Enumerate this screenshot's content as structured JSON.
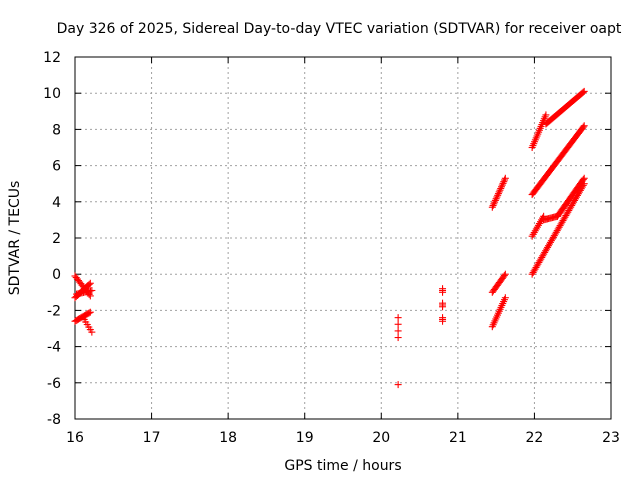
{
  "chart_data": {
    "type": "scatter",
    "title": "Day 326 of 2025, Sidereal Day-to-day VTEC variation (SDTVAR) for receiver oapt",
    "xlabel": "GPS time / hours",
    "ylabel": "SDTVAR / TECUs",
    "xlim": [
      16,
      23
    ],
    "ylim": [
      -8,
      12
    ],
    "xticks": [
      "16",
      "17",
      "18",
      "19",
      "20",
      "21",
      "22",
      "23"
    ],
    "yticks": [
      "-8",
      "-6",
      "-4",
      "-2",
      "0",
      "2",
      "4",
      "6",
      "8",
      "10",
      "12"
    ],
    "grid": true,
    "marker": "plus",
    "color": "#ff0000",
    "series": [
      {
        "segments": [
          {
            "x0": 16.0,
            "x1": 16.2,
            "y0": -0.1,
            "y1": -1.2,
            "n": 14
          },
          {
            "x0": 16.0,
            "x1": 16.2,
            "y0": -1.3,
            "y1": -0.5,
            "n": 14
          },
          {
            "x0": 16.02,
            "x1": 16.22,
            "y0": -1.1,
            "y1": -0.9,
            "n": 12
          },
          {
            "x0": 16.0,
            "x1": 16.2,
            "y0": -2.6,
            "y1": -2.1,
            "n": 14
          },
          {
            "x0": 16.12,
            "x1": 16.22,
            "y0": -2.5,
            "y1": -3.2,
            "n": 6
          },
          {
            "x0": 20.22,
            "x1": 20.22,
            "y0": -2.4,
            "y1": -3.5,
            "n": 4
          },
          {
            "x0": 20.22,
            "x1": 20.22,
            "y0": -6.1,
            "y1": -6.1,
            "n": 1
          },
          {
            "x0": 20.8,
            "x1": 20.8,
            "y0": -0.8,
            "y1": -1.0,
            "n": 3
          },
          {
            "x0": 20.8,
            "x1": 20.8,
            "y0": -1.6,
            "y1": -1.8,
            "n": 3
          },
          {
            "x0": 20.8,
            "x1": 20.8,
            "y0": -2.4,
            "y1": -2.6,
            "n": 3
          },
          {
            "x0": 21.45,
            "x1": 21.62,
            "y0": 3.7,
            "y1": 5.3,
            "n": 18
          },
          {
            "x0": 21.45,
            "x1": 21.62,
            "y0": -1.0,
            "y1": 0.0,
            "n": 14
          },
          {
            "x0": 21.45,
            "x1": 21.62,
            "y0": -2.9,
            "y1": -1.3,
            "n": 16
          },
          {
            "x0": 21.97,
            "x1": 22.15,
            "y0": 7.0,
            "y1": 8.8,
            "n": 18
          },
          {
            "x0": 22.15,
            "x1": 22.65,
            "y0": 8.3,
            "y1": 10.1,
            "n": 40
          },
          {
            "x0": 21.97,
            "x1": 22.65,
            "y0": 4.4,
            "y1": 8.2,
            "n": 55
          },
          {
            "x0": 21.97,
            "x1": 22.12,
            "y0": 2.1,
            "y1": 3.2,
            "n": 12
          },
          {
            "x0": 22.12,
            "x1": 22.3,
            "y0": 3.0,
            "y1": 3.2,
            "n": 12
          },
          {
            "x0": 22.3,
            "x1": 22.65,
            "y0": 3.2,
            "y1": 5.3,
            "n": 30
          },
          {
            "x0": 21.97,
            "x1": 22.65,
            "y0": 0.0,
            "y1": 5.0,
            "n": 55
          }
        ]
      }
    ]
  }
}
